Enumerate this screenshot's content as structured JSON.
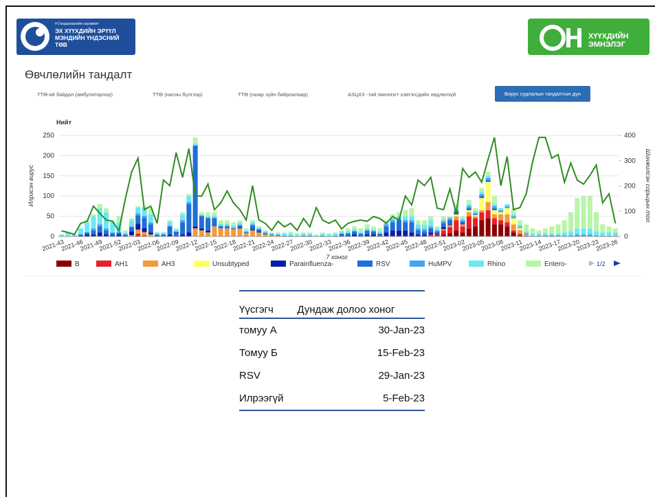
{
  "header": {
    "left_logo": {
      "subtitle": "Н.Гандаахаагийн нэрэмжит",
      "name": "ЭХ ХҮҮХДИЙН ЭРҮҮЛ МЭНДИЙН ҮНДЭСНИЙ ТӨВ"
    },
    "right_logo": {
      "name": "ХҮҮХДИЙН ЭМНЭЛЭГ"
    }
  },
  "page_title": "Өвчлөлийн тандалт",
  "tabs": [
    "ТТӨ-ий байдал (амбулаторлор)",
    "ТТӨ (насны бүлгээр)",
    "ТТӨ (газар зүйн байрлалаар)",
    "АЗЦХХ -тай эмнэлэгт хэвтэгсдийн хөдлөлзүй",
    "Вирус судлалын тандалтын дүн"
  ],
  "chart_data": {
    "type": "bar",
    "stacked": true,
    "title": "Нийт",
    "x_label": "7 хоног",
    "y_label": "Илрэсэн вирус",
    "y2_label": "Шинжилсэн сорьцын тоо",
    "legend_page": "1/2",
    "ylim": [
      0,
      250
    ],
    "yticks": [
      0,
      50,
      100,
      150,
      200,
      250
    ],
    "y2lim": [
      0,
      400
    ],
    "y2ticks": [
      0,
      100,
      200,
      300,
      400
    ],
    "categories": [
      "2021-43",
      null,
      null,
      "2021-46",
      null,
      null,
      "2021-49",
      null,
      null,
      "2021-52",
      null,
      null,
      "2022-03",
      null,
      null,
      "2022-06",
      null,
      null,
      "2022-09",
      null,
      null,
      "2022-12",
      null,
      null,
      "2022-15",
      null,
      null,
      "2022-18",
      null,
      null,
      "2022-21",
      null,
      null,
      "2022-24",
      null,
      null,
      "2022-27",
      null,
      null,
      "2022-30",
      null,
      null,
      "2022-33",
      null,
      null,
      "2022-36",
      null,
      null,
      "2022-39",
      null,
      null,
      "2022-42",
      null,
      null,
      "2022-45",
      null,
      null,
      "2022-48",
      null,
      null,
      "2022-51",
      null,
      null,
      "2023-02",
      null,
      null,
      "2023-05",
      null,
      null,
      "2023-08",
      null,
      null,
      "2023-11",
      null,
      null,
      "2023-14",
      null,
      null,
      "2023-17",
      null,
      null,
      "2023-20",
      null,
      null,
      "2023-23",
      null,
      null,
      "2023-26"
    ],
    "series": [
      {
        "name": "B",
        "color": "#8b0000",
        "values": [
          0,
          0,
          0,
          0,
          0,
          0,
          0,
          0,
          0,
          0,
          0,
          0,
          2,
          0,
          0,
          0,
          0,
          0,
          0,
          0,
          0,
          0,
          0,
          0,
          0,
          0,
          0,
          0,
          0,
          0,
          0,
          0,
          0,
          0,
          0,
          0,
          0,
          0,
          0,
          0,
          0,
          0,
          0,
          0,
          0,
          0,
          0,
          0,
          0,
          0,
          0,
          0,
          0,
          0,
          0,
          0,
          0,
          0,
          0,
          0,
          5,
          8,
          15,
          10,
          20,
          25,
          40,
          45,
          30,
          30,
          25,
          10,
          3,
          0,
          0,
          0,
          0,
          0,
          0,
          0,
          0,
          0,
          0,
          0,
          0,
          0,
          0,
          0
        ]
      },
      {
        "name": "AH1",
        "color": "#e8202a",
        "values": [
          0,
          0,
          0,
          0,
          0,
          0,
          0,
          0,
          0,
          0,
          0,
          0,
          5,
          3,
          0,
          0,
          0,
          0,
          0,
          0,
          0,
          0,
          0,
          0,
          0,
          0,
          0,
          0,
          0,
          0,
          0,
          0,
          0,
          0,
          0,
          0,
          0,
          0,
          0,
          0,
          0,
          0,
          0,
          0,
          0,
          0,
          0,
          0,
          0,
          0,
          0,
          0,
          0,
          0,
          0,
          0,
          0,
          0,
          5,
          5,
          10,
          15,
          25,
          15,
          30,
          20,
          20,
          20,
          15,
          10,
          10,
          5,
          3,
          2,
          0,
          0,
          0,
          0,
          0,
          0,
          0,
          0,
          0,
          0,
          0,
          0,
          0,
          0
        ]
      },
      {
        "name": "AH3",
        "color": "#f59a3c",
        "values": [
          0,
          0,
          0,
          0,
          0,
          0,
          0,
          0,
          0,
          0,
          0,
          3,
          10,
          8,
          5,
          0,
          0,
          0,
          0,
          0,
          0,
          20,
          15,
          10,
          25,
          20,
          20,
          18,
          20,
          8,
          15,
          10,
          5,
          3,
          2,
          0,
          0,
          0,
          0,
          0,
          0,
          0,
          0,
          0,
          0,
          0,
          0,
          0,
          0,
          0,
          0,
          0,
          0,
          0,
          0,
          0,
          0,
          0,
          0,
          0,
          3,
          5,
          10,
          5,
          10,
          5,
          5,
          20,
          10,
          15,
          20,
          15,
          10,
          3,
          0,
          0,
          0,
          0,
          0,
          0,
          0,
          0,
          0,
          0,
          0,
          0,
          0,
          0
        ]
      },
      {
        "name": "Unsubtyped",
        "color": "#ffff66",
        "values": [
          0,
          0,
          0,
          0,
          0,
          0,
          0,
          0,
          0,
          0,
          0,
          0,
          0,
          0,
          0,
          0,
          0,
          0,
          0,
          0,
          0,
          0,
          0,
          0,
          0,
          0,
          0,
          0,
          0,
          0,
          0,
          0,
          0,
          0,
          0,
          0,
          0,
          0,
          0,
          0,
          0,
          0,
          0,
          0,
          0,
          0,
          0,
          0,
          0,
          0,
          0,
          0,
          0,
          0,
          0,
          0,
          0,
          0,
          0,
          0,
          0,
          0,
          5,
          0,
          5,
          3,
          30,
          50,
          10,
          5,
          15,
          15,
          5,
          0,
          0,
          0,
          0,
          0,
          0,
          0,
          0,
          0,
          0,
          0,
          0,
          0,
          0,
          0
        ]
      },
      {
        "name": "Parainfluenza-",
        "color": "#0a1ea8",
        "values": [
          0,
          0,
          0,
          2,
          5,
          5,
          10,
          5,
          3,
          5,
          2,
          10,
          15,
          10,
          5,
          2,
          0,
          5,
          2,
          5,
          10,
          5,
          5,
          5,
          0,
          0,
          0,
          0,
          2,
          0,
          2,
          2,
          0,
          0,
          0,
          0,
          0,
          0,
          0,
          0,
          0,
          0,
          0,
          0,
          2,
          3,
          5,
          2,
          5,
          5,
          2,
          10,
          15,
          15,
          15,
          10,
          5,
          5,
          5,
          2,
          5,
          2,
          2,
          2,
          0,
          0,
          0,
          0,
          0,
          0,
          0,
          0,
          0,
          0,
          0,
          0,
          0,
          0,
          0,
          0,
          0,
          0,
          0,
          0,
          0,
          0,
          0,
          0
        ]
      },
      {
        "name": "RSV",
        "color": "#1f6fd6",
        "values": [
          0,
          0,
          0,
          3,
          5,
          10,
          15,
          10,
          5,
          5,
          3,
          10,
          20,
          25,
          20,
          3,
          5,
          20,
          10,
          30,
          70,
          200,
          30,
          30,
          20,
          5,
          5,
          2,
          5,
          2,
          10,
          5,
          3,
          2,
          2,
          2,
          2,
          0,
          2,
          2,
          0,
          2,
          0,
          2,
          5,
          5,
          8,
          5,
          10,
          8,
          5,
          15,
          20,
          25,
          20,
          25,
          10,
          8,
          10,
          5,
          10,
          10,
          5,
          5,
          5,
          2,
          5,
          5,
          5,
          0,
          0,
          0,
          0,
          0,
          0,
          0,
          0,
          0,
          0,
          0,
          0,
          0,
          0,
          0,
          0,
          0,
          0,
          0
        ]
      },
      {
        "name": "HuMPV",
        "color": "#4aa3e8",
        "values": [
          0,
          0,
          0,
          0,
          0,
          5,
          5,
          5,
          2,
          0,
          0,
          2,
          5,
          5,
          5,
          0,
          0,
          2,
          0,
          5,
          5,
          0,
          2,
          2,
          2,
          2,
          2,
          2,
          2,
          2,
          3,
          2,
          2,
          0,
          0,
          0,
          0,
          0,
          0,
          0,
          0,
          0,
          0,
          0,
          0,
          0,
          0,
          0,
          0,
          0,
          0,
          5,
          5,
          5,
          5,
          5,
          5,
          5,
          5,
          3,
          5,
          5,
          3,
          3,
          5,
          3,
          5,
          5,
          5,
          5,
          5,
          5,
          3,
          3,
          2,
          2,
          3,
          3,
          3,
          3,
          3,
          5,
          5,
          5,
          3,
          2,
          2,
          2
        ]
      },
      {
        "name": "Rhino",
        "color": "#6ae8f5",
        "values": [
          5,
          10,
          5,
          15,
          25,
          30,
          40,
          40,
          25,
          25,
          5,
          15,
          15,
          20,
          20,
          5,
          5,
          10,
          5,
          15,
          15,
          5,
          3,
          3,
          5,
          5,
          5,
          5,
          5,
          3,
          5,
          3,
          3,
          3,
          3,
          5,
          5,
          5,
          5,
          5,
          3,
          5,
          5,
          5,
          5,
          5,
          5,
          5,
          5,
          5,
          5,
          5,
          5,
          5,
          10,
          10,
          10,
          10,
          15,
          5,
          5,
          3,
          5,
          5,
          5,
          5,
          5,
          5,
          5,
          5,
          5,
          5,
          5,
          5,
          5,
          5,
          5,
          5,
          5,
          7,
          10,
          15,
          15,
          15,
          10,
          8,
          8,
          8
        ]
      },
      {
        "name": "Entero-",
        "color": "#b8f5a8",
        "values": [
          0,
          0,
          0,
          0,
          5,
          5,
          10,
          10,
          5,
          15,
          5,
          5,
          3,
          4,
          15,
          0,
          0,
          3,
          3,
          5,
          5,
          15,
          5,
          10,
          8,
          8,
          8,
          8,
          6,
          5,
          5,
          3,
          2,
          2,
          3,
          3,
          5,
          3,
          3,
          3,
          2,
          3,
          3,
          3,
          3,
          7,
          7,
          8,
          10,
          7,
          8,
          5,
          10,
          10,
          15,
          20,
          10,
          12,
          10,
          5,
          7,
          2,
          10,
          5,
          10,
          7,
          10,
          10,
          20,
          0,
          0,
          15,
          11,
          17,
          13,
          8,
          12,
          17,
          22,
          30,
          47,
          75,
          80,
          80,
          47,
          20,
          15,
          10
        ]
      },
      {
        "type": "line",
        "axis": "y2",
        "color": "#2e8b22",
        "values": [
          22,
          16,
          8,
          52,
          60,
          120,
          92,
          65,
          60,
          22,
          147,
          255,
          310,
          106,
          120,
          52,
          223,
          201,
          332,
          234,
          348,
          160,
          160,
          207,
          106,
          133,
          180,
          133,
          106,
          65,
          201,
          65,
          52,
          24,
          60,
          38,
          52,
          24,
          71,
          38,
          114,
          65,
          52,
          65,
          30,
          52,
          60,
          65,
          60,
          79,
          71,
          52,
          79,
          65,
          160,
          125,
          223,
          201,
          234,
          112,
          106,
          188,
          92,
          269,
          234,
          255,
          215,
          305,
          392,
          201,
          316,
          106,
          114,
          169,
          297,
          392,
          392,
          310,
          324,
          215,
          291,
          223,
          207,
          242,
          283,
          133,
          169,
          52
        ]
      }
    ]
  },
  "table": {
    "header": [
      "Үүсгэгч",
      "Дундаж долоо хоног"
    ],
    "rows": [
      [
        "томуу А",
        "30-Jan-23"
      ],
      [
        "Томуу Б",
        "15-Feb-23"
      ],
      [
        "RSV",
        "29-Jan-23"
      ],
      [
        "Илрээгүй",
        "5-Feb-23"
      ]
    ]
  }
}
